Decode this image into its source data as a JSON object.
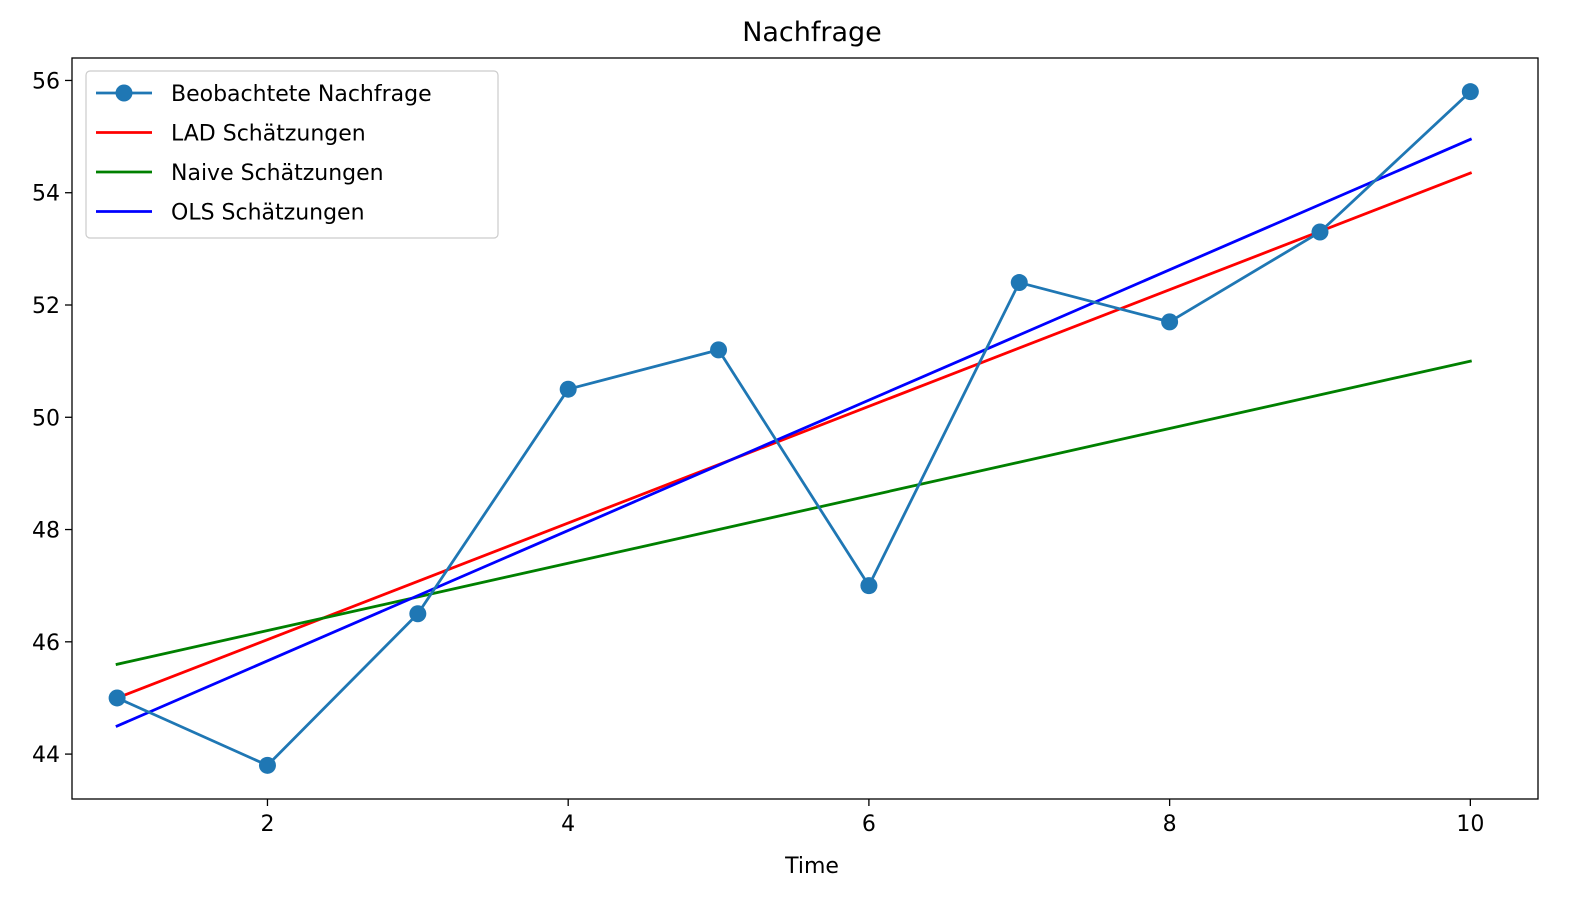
{
  "chart_data": {
    "type": "line",
    "title": "Nachfrage",
    "xlabel": "Time",
    "ylabel": "",
    "xlim": [
      0.7,
      10.45
    ],
    "ylim": [
      43.2,
      56.4
    ],
    "xticks": [
      2,
      4,
      6,
      8,
      10
    ],
    "yticks": [
      44,
      46,
      48,
      50,
      52,
      54,
      56
    ],
    "grid": false,
    "legend_position": "upper-left",
    "series": [
      {
        "name": "Beobachtete Nachfrage",
        "color": "#1f77b4",
        "marker": "circle",
        "x": [
          1,
          2,
          3,
          4,
          5,
          6,
          7,
          8,
          9,
          10
        ],
        "y": [
          45.0,
          43.8,
          46.5,
          50.5,
          51.2,
          47.0,
          52.4,
          51.7,
          53.3,
          55.8
        ]
      },
      {
        "name": "LAD Schätzungen",
        "color": "#ff0000",
        "marker": "none",
        "x": [
          1,
          10
        ],
        "y": [
          45.0,
          54.35
        ]
      },
      {
        "name": "Naive Schätzungen",
        "color": "#008000",
        "marker": "none",
        "x": [
          1,
          10
        ],
        "y": [
          45.6,
          51.0
        ]
      },
      {
        "name": "OLS Schätzungen",
        "color": "#0000ff",
        "marker": "none",
        "x": [
          1,
          10
        ],
        "y": [
          44.5,
          54.95
        ]
      }
    ]
  }
}
